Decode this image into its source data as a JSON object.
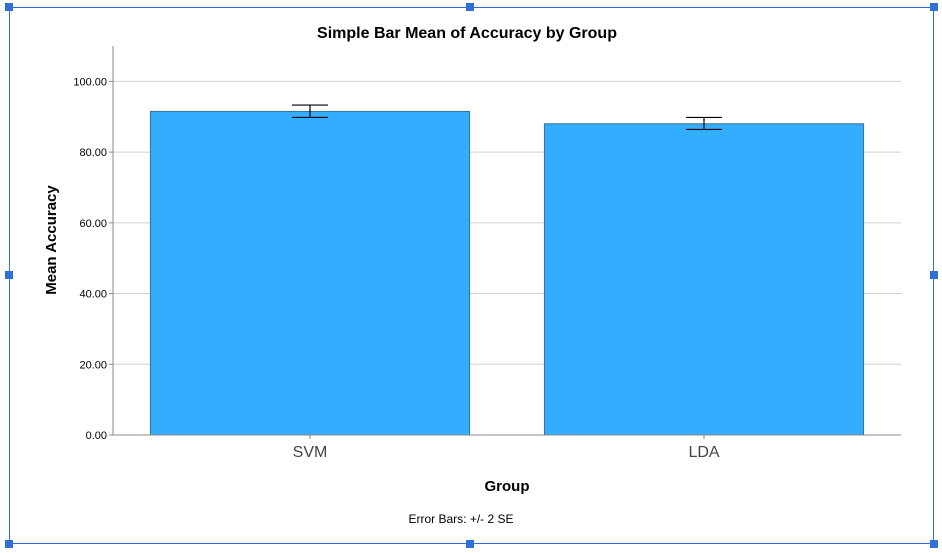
{
  "chart_data": {
    "type": "bar",
    "title": "Simple Bar Mean of Accuracy by Group",
    "xlabel": "Group",
    "ylabel": "Mean Accuracy",
    "categories": [
      "SVM",
      "LDA"
    ],
    "values": [
      91.5,
      88.0
    ],
    "error_low": [
      89.8,
      86.4
    ],
    "error_high": [
      93.3,
      89.8
    ],
    "ylim": [
      0,
      110
    ],
    "yticks": [
      0,
      20,
      40,
      60,
      80,
      100
    ],
    "ytick_labels": [
      "0.00",
      "20.00",
      "40.00",
      "60.00",
      "80.00",
      "100.00"
    ],
    "grid": true,
    "bar_color": "#33adff",
    "footnote": "Error Bars: +/- 2 SE"
  }
}
